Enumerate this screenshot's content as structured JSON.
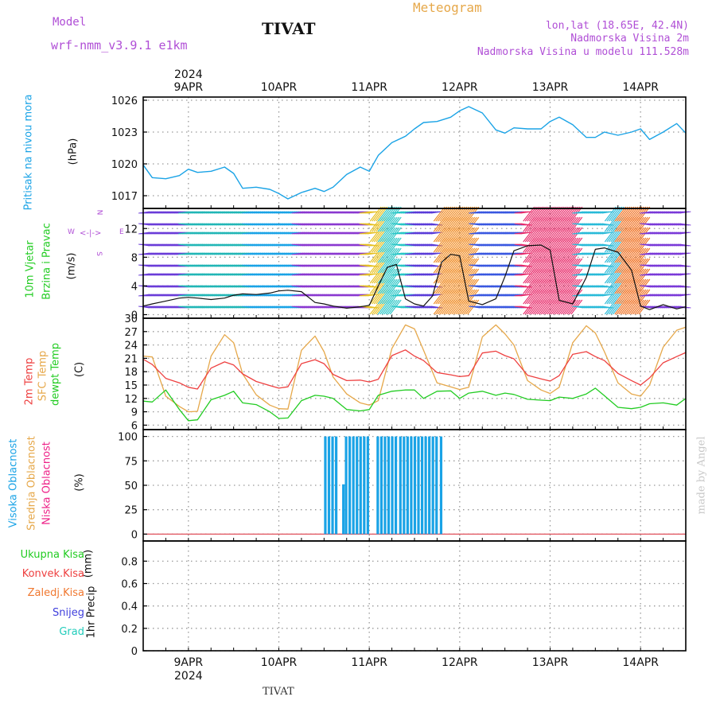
{
  "header": {
    "model_label": "Model",
    "model_name": "wrf-nmm_v3.9.1  e1km",
    "station": "TIVAT",
    "product": "Meteogram",
    "lonlat": "lon,lat (18.65E, 42.4N)",
    "height": "Nadmorska Visina 2m",
    "model_height": "Nadmorska Visina u modelu 111.528m"
  },
  "footer_station": "TIVAT",
  "credit": "made by Angel",
  "colors": {
    "pressure": "#1aa3e6",
    "temp2m": "#ee4040",
    "sfc": "#e6a84a",
    "dewpt": "#22cc22",
    "cloud_high": "#1aa3e6",
    "cloud_mid": "#e6a84a",
    "cloud_low": "#ee2288",
    "model": "#b04fd6"
  },
  "time_axis": {
    "year": "2024",
    "days": [
      "9APR",
      "10APR",
      "11APR",
      "12APR",
      "13APR",
      "14APR"
    ],
    "start_day": 8.5,
    "end_day": 14.5
  },
  "chart_data": [
    {
      "type": "line",
      "ylabel": "Pritisak na nivou mora",
      "units": "(hPa)",
      "yticks": [
        1017,
        1020,
        1023,
        1026
      ],
      "ylim": [
        1015.8,
        1026.3
      ],
      "series": [
        {
          "x": [
            8.5,
            8.6,
            8.75,
            8.9,
            9.0,
            9.1,
            9.25,
            9.4,
            9.5,
            9.6,
            9.75,
            9.9,
            10.0,
            10.1,
            10.25,
            10.4,
            10.5,
            10.6,
            10.75,
            10.9,
            11.0,
            11.1,
            11.25,
            11.4,
            11.5,
            11.6,
            11.75,
            11.9,
            12.0,
            12.1,
            12.25,
            12.4,
            12.5,
            12.6,
            12.75,
            12.9,
            13.0,
            13.1,
            13.25,
            13.4,
            13.5,
            13.6,
            13.75,
            13.9,
            14.0,
            14.1,
            14.25,
            14.4,
            14.5
          ],
          "y": [
            1019.9,
            1018.7,
            1018.6,
            1018.9,
            1019.5,
            1019.2,
            1019.3,
            1019.7,
            1019.1,
            1017.7,
            1017.8,
            1017.6,
            1017.2,
            1016.7,
            1017.3,
            1017.7,
            1017.4,
            1017.8,
            1019.0,
            1019.7,
            1019.3,
            1020.8,
            1022.0,
            1022.6,
            1023.3,
            1023.9,
            1024.0,
            1024.4,
            1025.0,
            1025.4,
            1024.8,
            1023.2,
            1022.9,
            1023.4,
            1023.3,
            1023.3,
            1024.0,
            1024.4,
            1023.7,
            1022.5,
            1022.5,
            1023.0,
            1022.7,
            1023.0,
            1023.3,
            1022.3,
            1023.0,
            1023.8,
            1022.9
          ]
        }
      ]
    },
    {
      "type": "line",
      "ylabel": "10m Vjetar Brzina i Pravac",
      "units": "(m/s)",
      "yticks": [
        0,
        4,
        8,
        12
      ],
      "ylim": [
        -0.5,
        14.8
      ],
      "series": [
        {
          "name": "wind speed",
          "x": [
            8.5,
            8.6,
            8.75,
            8.9,
            9.0,
            9.1,
            9.25,
            9.4,
            9.5,
            9.6,
            9.75,
            9.9,
            10.0,
            10.1,
            10.25,
            10.4,
            10.5,
            10.6,
            10.75,
            10.9,
            11.0,
            11.1,
            11.2,
            11.3,
            11.4,
            11.5,
            11.6,
            11.7,
            11.8,
            11.9,
            12.0,
            12.1,
            12.25,
            12.4,
            12.5,
            12.6,
            12.75,
            12.9,
            13.0,
            13.1,
            13.25,
            13.4,
            13.5,
            13.6,
            13.75,
            13.9,
            14.0,
            14.1,
            14.25,
            14.4,
            14.5
          ],
          "y": [
            1.2,
            1.5,
            1.9,
            2.3,
            2.4,
            2.3,
            2.1,
            2.3,
            2.7,
            2.9,
            2.8,
            3.0,
            3.3,
            3.4,
            3.2,
            1.7,
            1.5,
            1.2,
            0.9,
            1.1,
            1.3,
            4.0,
            6.6,
            7.0,
            2.2,
            1.5,
            1.2,
            2.6,
            7.3,
            8.4,
            8.2,
            1.9,
            1.4,
            2.2,
            5.3,
            8.9,
            9.6,
            9.7,
            9.0,
            2.0,
            1.5,
            5.2,
            9.1,
            9.3,
            8.7,
            6.2,
            1.2,
            0.7,
            1.4,
            0.8,
            1.1
          ]
        }
      ]
    },
    {
      "type": "line",
      "ylabel": "2m Temp / SFC Temp / dewpt Temp",
      "units": "(C)",
      "yticks": [
        6,
        9,
        12,
        15,
        18,
        21,
        24,
        27,
        30
      ],
      "ylim": [
        5,
        30
      ],
      "series": [
        {
          "name": "2m Temp",
          "x": [
            8.5,
            8.6,
            8.75,
            8.9,
            9.0,
            9.1,
            9.25,
            9.4,
            9.5,
            9.6,
            9.75,
            9.9,
            10.0,
            10.1,
            10.25,
            10.4,
            10.5,
            10.6,
            10.75,
            10.9,
            11.0,
            11.1,
            11.25,
            11.4,
            11.5,
            11.6,
            11.75,
            11.9,
            12.0,
            12.1,
            12.25,
            12.4,
            12.5,
            12.6,
            12.75,
            12.9,
            13.0,
            13.1,
            13.25,
            13.4,
            13.5,
            13.6,
            13.75,
            13.9,
            14.0,
            14.1,
            14.25,
            14.4,
            14.5
          ],
          "y": [
            20.8,
            19.6,
            16.5,
            15.5,
            14.5,
            14.1,
            18.8,
            20.2,
            19.5,
            17.5,
            15.8,
            14.9,
            14.3,
            14.6,
            19.8,
            20.7,
            19.8,
            17.4,
            16.0,
            16.1,
            15.7,
            16.3,
            21.6,
            22.9,
            21.5,
            20.5,
            17.8,
            17.3,
            16.9,
            17.1,
            22.2,
            22.6,
            21.6,
            20.9,
            17.2,
            16.4,
            15.9,
            17.1,
            21.9,
            22.5,
            21.4,
            20.5,
            17.6,
            16.0,
            15.0,
            16.6,
            20.0,
            21.4,
            22.3
          ]
        },
        {
          "name": "SFC Temp",
          "x": [
            8.5,
            8.6,
            8.75,
            8.9,
            9.0,
            9.1,
            9.25,
            9.4,
            9.5,
            9.6,
            9.75,
            9.9,
            10.0,
            10.1,
            10.25,
            10.4,
            10.5,
            10.6,
            10.75,
            10.9,
            11.0,
            11.1,
            11.25,
            11.4,
            11.5,
            11.6,
            11.75,
            11.9,
            12.0,
            12.1,
            12.25,
            12.4,
            12.5,
            12.6,
            12.75,
            12.9,
            13.0,
            13.1,
            13.25,
            13.4,
            13.5,
            13.6,
            13.75,
            13.9,
            14.0,
            14.1,
            14.25,
            14.4,
            14.5
          ],
          "y": [
            21.5,
            21.3,
            12.5,
            10.2,
            9.0,
            9.1,
            21.5,
            26.3,
            24.5,
            17.5,
            12.8,
            10.5,
            9.7,
            9.6,
            22.8,
            26.0,
            22.5,
            16.8,
            13.0,
            11.0,
            10.5,
            11.5,
            23.2,
            28.5,
            27.6,
            22.8,
            15.5,
            14.6,
            14.0,
            14.5,
            25.8,
            28.5,
            26.5,
            24.0,
            16.0,
            13.9,
            13.1,
            14.5,
            24.5,
            28.3,
            26.7,
            22.5,
            15.5,
            13.0,
            12.5,
            15.0,
            23.5,
            27.3,
            28.0
          ]
        },
        {
          "name": "dewpt Temp",
          "x": [
            8.5,
            8.6,
            8.75,
            8.9,
            9.0,
            9.1,
            9.25,
            9.4,
            9.5,
            9.6,
            9.75,
            9.9,
            10.0,
            10.1,
            10.25,
            10.4,
            10.5,
            10.6,
            10.75,
            10.9,
            11.0,
            11.1,
            11.25,
            11.4,
            11.5,
            11.6,
            11.75,
            11.9,
            12.0,
            12.1,
            12.25,
            12.4,
            12.5,
            12.6,
            12.75,
            12.9,
            13.0,
            13.1,
            13.25,
            13.4,
            13.5,
            13.6,
            13.75,
            13.9,
            14.0,
            14.1,
            14.25,
            14.4,
            14.5
          ],
          "y": [
            11.4,
            11.2,
            13.9,
            9.5,
            7.0,
            7.2,
            11.7,
            12.7,
            13.6,
            11.0,
            10.6,
            9.0,
            7.5,
            7.6,
            11.5,
            12.7,
            12.5,
            12.0,
            9.5,
            9.2,
            9.5,
            12.7,
            13.6,
            13.9,
            13.9,
            12.0,
            13.6,
            13.7,
            12.0,
            13.2,
            13.6,
            12.7,
            13.2,
            12.9,
            11.8,
            11.6,
            11.5,
            12.3,
            12.0,
            13.0,
            14.3,
            12.6,
            10.0,
            9.7,
            10.0,
            10.8,
            11.0,
            10.5,
            12.0
          ]
        }
      ]
    },
    {
      "type": "bar",
      "ylabel": "Visoka / Srednja / Niska Oblacnost",
      "units": "(%)",
      "yticks": [
        0,
        25,
        50,
        75,
        100
      ],
      "ylim": [
        -7,
        107
      ],
      "series": [
        {
          "name": "Visoka Oblacnost",
          "x": [
            10.5,
            10.54,
            10.58,
            10.62,
            10.7,
            10.73,
            10.77,
            10.81,
            10.85,
            10.89,
            10.93,
            10.97,
            11.08,
            11.12,
            11.16,
            11.2,
            11.24,
            11.28,
            11.33,
            11.37,
            11.41,
            11.45,
            11.49,
            11.53,
            11.57,
            11.61,
            11.65,
            11.69,
            11.73,
            11.78
          ],
          "y": [
            100,
            100,
            100,
            100,
            51,
            100,
            100,
            100,
            100,
            100,
            100,
            100,
            100,
            100,
            100,
            100,
            100,
            100,
            100,
            100,
            100,
            100,
            100,
            100,
            100,
            100,
            100,
            100,
            100,
            100
          ]
        }
      ]
    },
    {
      "type": "bar",
      "ylabel": "1hr Precip",
      "units": "(mm)",
      "yticks": [
        0,
        0.2,
        0.4,
        0.6,
        0.8
      ],
      "ylim": [
        0,
        0.98
      ],
      "legend": [
        "Ukupna Kisa",
        "Konvek.Kisa",
        "Zaledj.Kisa",
        "Snijeg",
        "Grad"
      ],
      "legend_colors": [
        "#22cc22",
        "#ee4040",
        "#f07830",
        "#4040dd",
        "#22ccbb"
      ],
      "series": []
    }
  ],
  "panel_titles": {
    "pressure": "Pritisak na nivou mora",
    "pressure_units": "(hPa)",
    "wind1": "10m Vjetar",
    "wind2": "Brzina i Pravac",
    "wind_units": "(m/s)",
    "temp1": "2m Temp",
    "temp2": "SFC Temp",
    "temp3": "dewpt Temp",
    "temp_units": "(C)",
    "cloud1": "Visoka Oblacnost",
    "cloud2": "Srednja Oblacnost",
    "cloud3": "Niska Oblacnost",
    "cloud_units": "(%)",
    "precip_title": "1hr Precip",
    "precip_units": "(mm)"
  },
  "compass": {
    "n": "N",
    "s": "S",
    "e": "E",
    "w": "W"
  }
}
